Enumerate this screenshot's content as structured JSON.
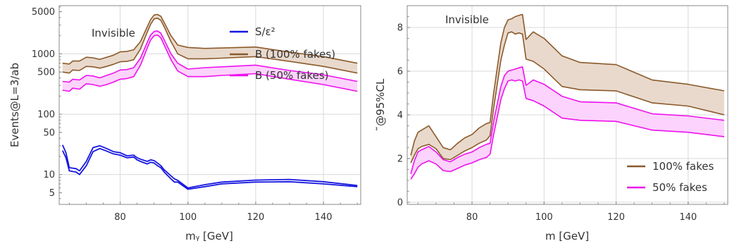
{
  "chart_data": [
    {
      "type": "line",
      "annotation": "Invisible",
      "xlabel": "mᵧ [GeV]",
      "ylabel": "Events@L=3/ab",
      "yscale": "log",
      "xlim": [
        62,
        151
      ],
      "ylim": [
        3.2,
        6300
      ],
      "xticks": [
        "80",
        "100",
        "120",
        "140"
      ],
      "yticks": [
        "5",
        "10",
        "50",
        "100",
        "500",
        "1000",
        "5000"
      ],
      "grid": true,
      "legend": "top-right",
      "series": [
        {
          "name": "S/ε²",
          "color": "#1515e0",
          "style": "band",
          "x": [
            63,
            64,
            65,
            67,
            68,
            70,
            72,
            74,
            76,
            78,
            80,
            82,
            84,
            85,
            86,
            88,
            89,
            90,
            91,
            92,
            93,
            95,
            96,
            97,
            100,
            105,
            110,
            120,
            130,
            140,
            150
          ],
          "lower": [
            25,
            19,
            11.5,
            11,
            10,
            14,
            24,
            27,
            24.5,
            22,
            21,
            19,
            19.5,
            17.5,
            16.5,
            15,
            16,
            15.5,
            14,
            13,
            11,
            8.5,
            7.5,
            7.5,
            5.7,
            6.3,
            7.0,
            7.5,
            7.6,
            7.0,
            6.3
          ],
          "upper": [
            31,
            23,
            13,
            12.5,
            11.5,
            16.5,
            28,
            30,
            27,
            24,
            23,
            20.5,
            21,
            19,
            18,
            16.5,
            17.5,
            17,
            15.5,
            14,
            12,
            9.5,
            8.5,
            8,
            6,
            6.8,
            7.5,
            8.1,
            8.3,
            7.6,
            6.6
          ]
        },
        {
          "name": "B (100% fakes)",
          "color": "#8b5a2b",
          "fill": "#e8d9cc",
          "style": "band",
          "x": [
            63,
            65,
            66,
            68,
            70,
            72,
            74,
            76,
            78,
            80,
            82,
            84,
            86,
            88,
            89,
            90,
            91,
            92,
            93,
            95,
            97,
            100,
            105,
            110,
            120,
            130,
            140,
            150
          ],
          "lower": [
            500,
            480,
            540,
            530,
            620,
            610,
            580,
            620,
            670,
            740,
            750,
            800,
            1200,
            2300,
            3100,
            3800,
            3900,
            3600,
            2800,
            1600,
            1000,
            830,
            830,
            850,
            900,
            750,
            620,
            480
          ],
          "upper": [
            700,
            680,
            760,
            760,
            880,
            860,
            810,
            880,
            950,
            1080,
            1100,
            1170,
            1600,
            2800,
            3700,
            4400,
            4500,
            4200,
            3300,
            2000,
            1400,
            1280,
            1230,
            1250,
            1300,
            1070,
            900,
            700
          ]
        },
        {
          "name": "B (50% fakes)",
          "color": "#ee11ee",
          "fill": "#fcd3fc",
          "style": "band",
          "x": [
            63,
            65,
            66,
            68,
            70,
            72,
            74,
            76,
            78,
            80,
            82,
            84,
            86,
            88,
            89,
            90,
            91,
            92,
            93,
            95,
            97,
            100,
            105,
            110,
            120,
            130,
            140,
            150
          ],
          "lower": [
            250,
            240,
            270,
            260,
            320,
            310,
            290,
            310,
            340,
            380,
            390,
            420,
            650,
            1250,
            1700,
            2000,
            2050,
            1850,
            1400,
            800,
            520,
            420,
            420,
            440,
            470,
            380,
            310,
            240
          ],
          "upper": [
            350,
            340,
            380,
            370,
            440,
            430,
            400,
            440,
            480,
            540,
            550,
            590,
            850,
            1550,
            2050,
            2350,
            2400,
            2200,
            1700,
            1000,
            700,
            560,
            590,
            610,
            650,
            530,
            450,
            350
          ]
        }
      ]
    },
    {
      "type": "line",
      "annotation": "Invisible",
      "xlabel": "m [GeV]",
      "ylabel": "˜@95%CL",
      "xlim": [
        62,
        151
      ],
      "ylim": [
        -0.1,
        9.0
      ],
      "xticks": [
        "80",
        "100",
        "120",
        "140"
      ],
      "yticks": [
        "0",
        "2",
        "4",
        "6",
        "8"
      ],
      "grid": true,
      "legend": "bottom-right",
      "series": [
        {
          "name": "100% fakes",
          "color": "#8b5a2b",
          "fill": "#e8d9cc",
          "style": "band",
          "x": [
            63,
            64,
            65,
            66,
            68,
            70,
            72,
            74,
            76,
            78,
            80,
            82,
            84,
            85,
            86,
            88,
            89,
            90,
            91,
            92,
            93,
            94,
            95,
            97,
            100,
            105,
            110,
            120,
            130,
            140,
            150
          ],
          "lower": [
            1.8,
            2.15,
            2.45,
            2.55,
            2.65,
            2.45,
            2.0,
            1.95,
            2.15,
            2.35,
            2.5,
            2.7,
            2.85,
            3.05,
            4.3,
            6.5,
            7.2,
            7.75,
            7.8,
            7.7,
            7.75,
            7.7,
            6.55,
            6.45,
            6.1,
            5.3,
            5.15,
            5.1,
            4.55,
            4.4,
            4.0
          ],
          "upper": [
            2.15,
            2.8,
            3.2,
            3.3,
            3.5,
            3.0,
            2.5,
            2.4,
            2.7,
            2.95,
            3.1,
            3.4,
            3.6,
            3.65,
            5.0,
            7.3,
            8.0,
            8.35,
            8.4,
            8.5,
            8.55,
            8.6,
            7.45,
            7.8,
            7.5,
            6.7,
            6.4,
            6.3,
            5.6,
            5.4,
            5.1
          ]
        },
        {
          "name": "50% fakes",
          "color": "#ee11ee",
          "fill": "#fcd3fc",
          "style": "band",
          "x": [
            63,
            64,
            65,
            66,
            68,
            70,
            72,
            74,
            76,
            78,
            80,
            82,
            84,
            85,
            86,
            88,
            89,
            90,
            91,
            92,
            93,
            94,
            95,
            97,
            100,
            105,
            110,
            120,
            130,
            140,
            150
          ],
          "lower": [
            1.05,
            1.3,
            1.6,
            1.75,
            1.9,
            1.75,
            1.45,
            1.4,
            1.55,
            1.7,
            1.8,
            1.95,
            2.05,
            2.2,
            3.1,
            4.7,
            5.2,
            5.55,
            5.6,
            5.55,
            5.6,
            5.55,
            4.75,
            4.65,
            4.4,
            3.85,
            3.75,
            3.7,
            3.3,
            3.2,
            3.0
          ],
          "upper": [
            1.3,
            1.9,
            2.3,
            2.4,
            2.55,
            2.3,
            1.95,
            1.85,
            2.05,
            2.2,
            2.3,
            2.5,
            2.65,
            2.7,
            3.7,
            5.3,
            5.8,
            6.0,
            6.05,
            6.1,
            6.15,
            6.2,
            5.35,
            5.6,
            5.4,
            4.85,
            4.6,
            4.55,
            4.05,
            3.95,
            3.75
          ]
        }
      ]
    }
  ]
}
